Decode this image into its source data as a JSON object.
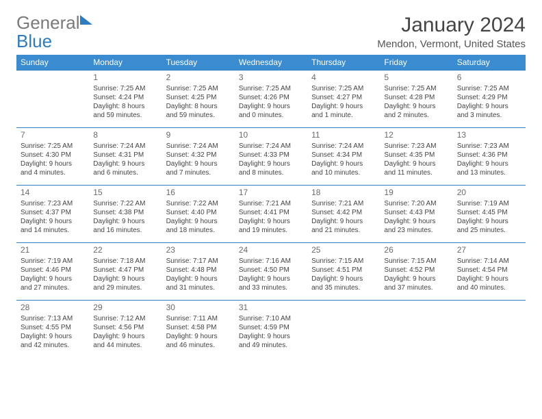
{
  "logo": {
    "word1": "General",
    "word2": "Blue"
  },
  "title": "January 2024",
  "location": "Mendon, Vermont, United States",
  "colors": {
    "header_bg": "#3b8bd0",
    "header_text": "#ffffff",
    "row_border": "#2d7bc0",
    "logo_blue": "#2d7bc0",
    "logo_gray": "#7a7a7a",
    "text": "#444444",
    "daynum": "#6a6a6a"
  },
  "day_headers": [
    "Sunday",
    "Monday",
    "Tuesday",
    "Wednesday",
    "Thursday",
    "Friday",
    "Saturday"
  ],
  "weeks": [
    [
      null,
      {
        "n": "1",
        "sunrise": "Sunrise: 7:25 AM",
        "sunset": "Sunset: 4:24 PM",
        "day1": "Daylight: 8 hours",
        "day2": "and 59 minutes."
      },
      {
        "n": "2",
        "sunrise": "Sunrise: 7:25 AM",
        "sunset": "Sunset: 4:25 PM",
        "day1": "Daylight: 8 hours",
        "day2": "and 59 minutes."
      },
      {
        "n": "3",
        "sunrise": "Sunrise: 7:25 AM",
        "sunset": "Sunset: 4:26 PM",
        "day1": "Daylight: 9 hours",
        "day2": "and 0 minutes."
      },
      {
        "n": "4",
        "sunrise": "Sunrise: 7:25 AM",
        "sunset": "Sunset: 4:27 PM",
        "day1": "Daylight: 9 hours",
        "day2": "and 1 minute."
      },
      {
        "n": "5",
        "sunrise": "Sunrise: 7:25 AM",
        "sunset": "Sunset: 4:28 PM",
        "day1": "Daylight: 9 hours",
        "day2": "and 2 minutes."
      },
      {
        "n": "6",
        "sunrise": "Sunrise: 7:25 AM",
        "sunset": "Sunset: 4:29 PM",
        "day1": "Daylight: 9 hours",
        "day2": "and 3 minutes."
      }
    ],
    [
      {
        "n": "7",
        "sunrise": "Sunrise: 7:25 AM",
        "sunset": "Sunset: 4:30 PM",
        "day1": "Daylight: 9 hours",
        "day2": "and 4 minutes."
      },
      {
        "n": "8",
        "sunrise": "Sunrise: 7:24 AM",
        "sunset": "Sunset: 4:31 PM",
        "day1": "Daylight: 9 hours",
        "day2": "and 6 minutes."
      },
      {
        "n": "9",
        "sunrise": "Sunrise: 7:24 AM",
        "sunset": "Sunset: 4:32 PM",
        "day1": "Daylight: 9 hours",
        "day2": "and 7 minutes."
      },
      {
        "n": "10",
        "sunrise": "Sunrise: 7:24 AM",
        "sunset": "Sunset: 4:33 PM",
        "day1": "Daylight: 9 hours",
        "day2": "and 8 minutes."
      },
      {
        "n": "11",
        "sunrise": "Sunrise: 7:24 AM",
        "sunset": "Sunset: 4:34 PM",
        "day1": "Daylight: 9 hours",
        "day2": "and 10 minutes."
      },
      {
        "n": "12",
        "sunrise": "Sunrise: 7:23 AM",
        "sunset": "Sunset: 4:35 PM",
        "day1": "Daylight: 9 hours",
        "day2": "and 11 minutes."
      },
      {
        "n": "13",
        "sunrise": "Sunrise: 7:23 AM",
        "sunset": "Sunset: 4:36 PM",
        "day1": "Daylight: 9 hours",
        "day2": "and 13 minutes."
      }
    ],
    [
      {
        "n": "14",
        "sunrise": "Sunrise: 7:23 AM",
        "sunset": "Sunset: 4:37 PM",
        "day1": "Daylight: 9 hours",
        "day2": "and 14 minutes."
      },
      {
        "n": "15",
        "sunrise": "Sunrise: 7:22 AM",
        "sunset": "Sunset: 4:38 PM",
        "day1": "Daylight: 9 hours",
        "day2": "and 16 minutes."
      },
      {
        "n": "16",
        "sunrise": "Sunrise: 7:22 AM",
        "sunset": "Sunset: 4:40 PM",
        "day1": "Daylight: 9 hours",
        "day2": "and 18 minutes."
      },
      {
        "n": "17",
        "sunrise": "Sunrise: 7:21 AM",
        "sunset": "Sunset: 4:41 PM",
        "day1": "Daylight: 9 hours",
        "day2": "and 19 minutes."
      },
      {
        "n": "18",
        "sunrise": "Sunrise: 7:21 AM",
        "sunset": "Sunset: 4:42 PM",
        "day1": "Daylight: 9 hours",
        "day2": "and 21 minutes."
      },
      {
        "n": "19",
        "sunrise": "Sunrise: 7:20 AM",
        "sunset": "Sunset: 4:43 PM",
        "day1": "Daylight: 9 hours",
        "day2": "and 23 minutes."
      },
      {
        "n": "20",
        "sunrise": "Sunrise: 7:19 AM",
        "sunset": "Sunset: 4:45 PM",
        "day1": "Daylight: 9 hours",
        "day2": "and 25 minutes."
      }
    ],
    [
      {
        "n": "21",
        "sunrise": "Sunrise: 7:19 AM",
        "sunset": "Sunset: 4:46 PM",
        "day1": "Daylight: 9 hours",
        "day2": "and 27 minutes."
      },
      {
        "n": "22",
        "sunrise": "Sunrise: 7:18 AM",
        "sunset": "Sunset: 4:47 PM",
        "day1": "Daylight: 9 hours",
        "day2": "and 29 minutes."
      },
      {
        "n": "23",
        "sunrise": "Sunrise: 7:17 AM",
        "sunset": "Sunset: 4:48 PM",
        "day1": "Daylight: 9 hours",
        "day2": "and 31 minutes."
      },
      {
        "n": "24",
        "sunrise": "Sunrise: 7:16 AM",
        "sunset": "Sunset: 4:50 PM",
        "day1": "Daylight: 9 hours",
        "day2": "and 33 minutes."
      },
      {
        "n": "25",
        "sunrise": "Sunrise: 7:15 AM",
        "sunset": "Sunset: 4:51 PM",
        "day1": "Daylight: 9 hours",
        "day2": "and 35 minutes."
      },
      {
        "n": "26",
        "sunrise": "Sunrise: 7:15 AM",
        "sunset": "Sunset: 4:52 PM",
        "day1": "Daylight: 9 hours",
        "day2": "and 37 minutes."
      },
      {
        "n": "27",
        "sunrise": "Sunrise: 7:14 AM",
        "sunset": "Sunset: 4:54 PM",
        "day1": "Daylight: 9 hours",
        "day2": "and 40 minutes."
      }
    ],
    [
      {
        "n": "28",
        "sunrise": "Sunrise: 7:13 AM",
        "sunset": "Sunset: 4:55 PM",
        "day1": "Daylight: 9 hours",
        "day2": "and 42 minutes."
      },
      {
        "n": "29",
        "sunrise": "Sunrise: 7:12 AM",
        "sunset": "Sunset: 4:56 PM",
        "day1": "Daylight: 9 hours",
        "day2": "and 44 minutes."
      },
      {
        "n": "30",
        "sunrise": "Sunrise: 7:11 AM",
        "sunset": "Sunset: 4:58 PM",
        "day1": "Daylight: 9 hours",
        "day2": "and 46 minutes."
      },
      {
        "n": "31",
        "sunrise": "Sunrise: 7:10 AM",
        "sunset": "Sunset: 4:59 PM",
        "day1": "Daylight: 9 hours",
        "day2": "and 49 minutes."
      },
      null,
      null,
      null
    ]
  ]
}
